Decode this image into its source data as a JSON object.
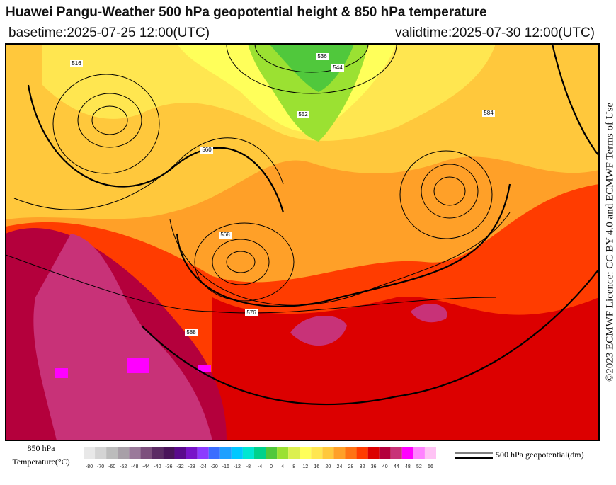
{
  "header": {
    "title": "Huawei Pangu-Weather 500 hPa geopotential height & 850 hPa temperature",
    "basetime": "basetime:2025-07-25 12:00(UTC)",
    "validtime": "validtime:2025-07-30 12:00(UTC)"
  },
  "license": "©2023 ECMWF Licence: CC BY 4.0 and ECMWF Terms of Use",
  "legend": {
    "temperature_label": [
      "850 hPa",
      "Temperature(°C)"
    ],
    "contour_label": "500 hPa geopotential(dm)"
  },
  "colorbar": {
    "ticks": [
      -80,
      -70,
      -60,
      -52,
      -48,
      -44,
      -40,
      -36,
      -32,
      -28,
      -24,
      -20,
      -16,
      -12,
      -8,
      -4,
      0,
      4,
      8,
      12,
      16,
      20,
      24,
      28,
      32,
      36,
      40,
      44,
      48,
      52,
      56
    ],
    "colors": [
      "#e8e8e8",
      "#d4d4d4",
      "#bcbcbc",
      "#a8a0a8",
      "#9a7a9a",
      "#7d507d",
      "#5c2c64",
      "#4a145a",
      "#5a0a8c",
      "#7814c8",
      "#8c3cff",
      "#3c6eff",
      "#1ea0ff",
      "#00c8ff",
      "#00e6d2",
      "#00d28c",
      "#50c83c",
      "#9be132",
      "#dcf050",
      "#ffff5a",
      "#ffe650",
      "#ffc83c",
      "#ffa028",
      "#ff7314",
      "#ff3c00",
      "#dc0000",
      "#b4003c",
      "#c83278",
      "#ff00ff",
      "#ff82ff",
      "#ffc3f5"
    ]
  },
  "map": {
    "contour_labels": [
      "516",
      "536",
      "544",
      "552",
      "560",
      "568",
      "576",
      "584",
      "588"
    ]
  }
}
